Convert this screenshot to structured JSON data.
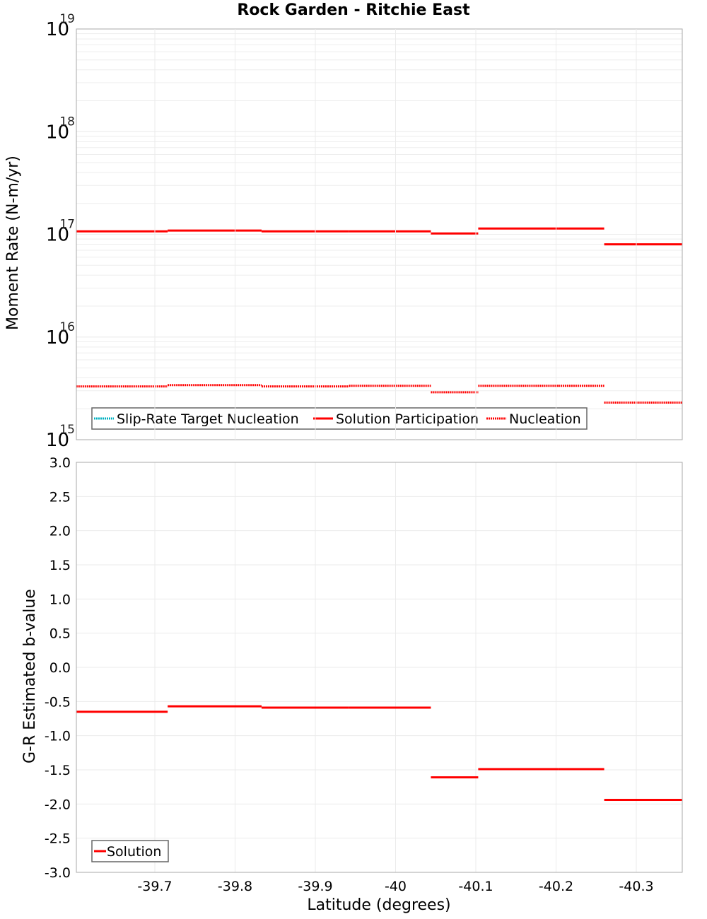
{
  "title": "Rock Garden - Ritchie East",
  "chart_data": [
    {
      "type": "line",
      "subtype": "step",
      "title": "Rock Garden - Ritchie East",
      "xlabel": "Latitude (degrees)",
      "ylabel": "Moment Rate (N-m/yr)",
      "yscale": "log",
      "ylim": [
        1000000000000000.0,
        1e+19
      ],
      "xlim": [
        -39.602,
        -40.357
      ],
      "x_ticks": [
        "-39.7",
        "-39.8",
        "-39.9",
        "-40",
        "-40.1",
        "-40.2",
        "-40.3"
      ],
      "y_ticks": [
        "10^15",
        "10^16",
        "10^17",
        "10^18",
        "10^19"
      ],
      "grid": true,
      "legend_position": "lower-left",
      "legend": [
        "Slip-Rate Target Nucleation",
        "Solution Participation",
        "Nucleation"
      ],
      "series": [
        {
          "name": "Slip-Rate Target Nucleation",
          "color": "#00b0c0",
          "style": "dotted",
          "segments": []
        },
        {
          "name": "Solution Participation",
          "color": "#ff0000",
          "style": "solid",
          "segments": [
            {
              "x0": -39.602,
              "x1": -39.716,
              "y": 1.07e+17
            },
            {
              "x0": -39.716,
              "x1": -39.833,
              "y": 1.09e+17
            },
            {
              "x0": -39.833,
              "x1": -39.942,
              "y": 1.07e+17
            },
            {
              "x0": -39.942,
              "x1": -40.044,
              "y": 1.07e+17
            },
            {
              "x0": -40.044,
              "x1": -40.103,
              "y": 1.02e+17
            },
            {
              "x0": -40.103,
              "x1": -40.203,
              "y": 1.14e+17
            },
            {
              "x0": -40.203,
              "x1": -40.26,
              "y": 1.14e+17
            },
            {
              "x0": -40.26,
              "x1": -40.357,
              "y": 8e+16
            }
          ]
        },
        {
          "name": "Nucleation",
          "color": "#ff0000",
          "style": "dotted",
          "segments": [
            {
              "x0": -39.602,
              "x1": -39.716,
              "y": 3300000000000000.0
            },
            {
              "x0": -39.716,
              "x1": -39.833,
              "y": 3400000000000000.0
            },
            {
              "x0": -39.833,
              "x1": -39.942,
              "y": 3300000000000000.0
            },
            {
              "x0": -39.942,
              "x1": -40.044,
              "y": 3350000000000000.0
            },
            {
              "x0": -40.044,
              "x1": -40.103,
              "y": 2900000000000000.0
            },
            {
              "x0": -40.103,
              "x1": -40.203,
              "y": 3350000000000000.0
            },
            {
              "x0": -40.203,
              "x1": -40.26,
              "y": 3350000000000000.0
            },
            {
              "x0": -40.26,
              "x1": -40.357,
              "y": 2300000000000000.0
            }
          ]
        }
      ]
    },
    {
      "type": "line",
      "subtype": "step",
      "xlabel": "Latitude (degrees)",
      "ylabel": "G-R Estimated b-value",
      "ylim": [
        -3.0,
        3.0
      ],
      "xlim": [
        -39.602,
        -40.357
      ],
      "x_ticks": [
        "-39.7",
        "-39.8",
        "-39.9",
        "-40",
        "-40.1",
        "-40.2",
        "-40.3"
      ],
      "y_ticks": [
        "-3.0",
        "-2.5",
        "-2.0",
        "-1.5",
        "-1.0",
        "-0.5",
        "0.0",
        "0.5",
        "1.0",
        "1.5",
        "2.0",
        "2.5",
        "3.0"
      ],
      "grid": true,
      "legend_position": "lower-left",
      "legend": [
        "Solution"
      ],
      "series": [
        {
          "name": "Solution",
          "color": "#ff0000",
          "style": "solid",
          "segments": [
            {
              "x0": -39.602,
              "x1": -39.716,
              "y": -0.65
            },
            {
              "x0": -39.716,
              "x1": -39.833,
              "y": -0.57
            },
            {
              "x0": -39.833,
              "x1": -39.942,
              "y": -0.59
            },
            {
              "x0": -39.942,
              "x1": -40.044,
              "y": -0.59
            },
            {
              "x0": -40.044,
              "x1": -40.103,
              "y": -1.61
            },
            {
              "x0": -40.103,
              "x1": -40.203,
              "y": -1.49
            },
            {
              "x0": -40.203,
              "x1": -40.26,
              "y": -1.49
            },
            {
              "x0": -40.26,
              "x1": -40.357,
              "y": -1.94
            }
          ]
        }
      ]
    }
  ],
  "top_plot": {
    "ylabel": "Moment Rate (N-m/yr)",
    "legend": {
      "slip_rate": "Slip-Rate Target Nucleation",
      "participation": "Solution Participation",
      "nucleation": "Nucleation"
    }
  },
  "bottom_plot": {
    "ylabel": "G-R Estimated b-value",
    "legend": {
      "solution": "Solution"
    }
  },
  "xlabel": "Latitude (degrees)",
  "colors": {
    "red": "#ff0000",
    "cyan": "#00b0c0",
    "grid": "#ebebeb",
    "frame": "#aaaaaa"
  }
}
